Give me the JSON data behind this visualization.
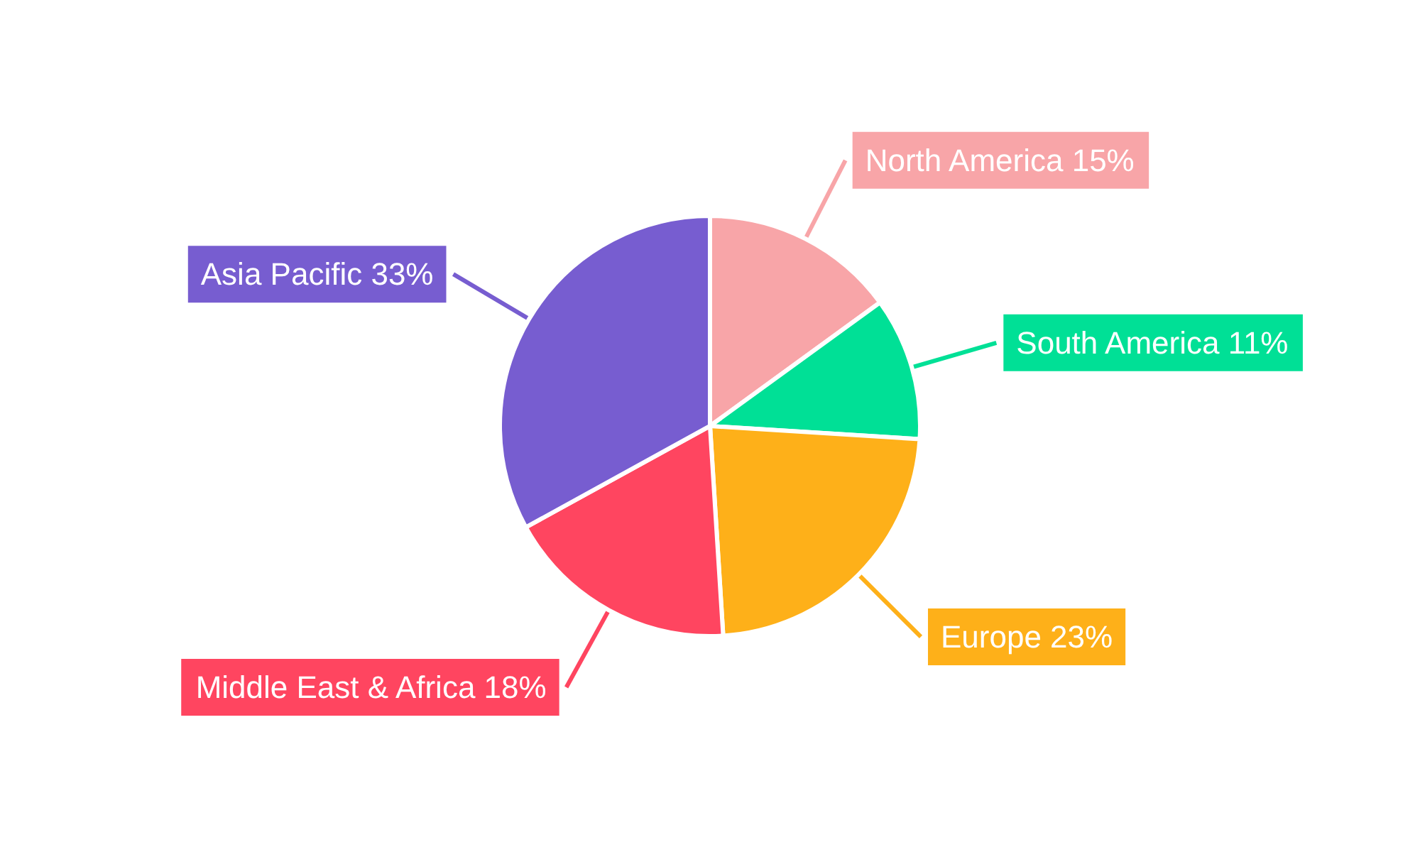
{
  "chart_data": {
    "type": "pie",
    "categories": [
      "North America",
      "South America",
      "Europe",
      "Middle East & Africa",
      "Asia Pacific"
    ],
    "values": [
      15,
      11,
      23,
      18,
      33
    ],
    "colors": [
      "#f8a5a8",
      "#00e096",
      "#feb019",
      "#ff4560",
      "#775dd0"
    ],
    "value_labels": [
      "15%",
      "11%",
      "23%",
      "18%",
      "33%"
    ],
    "legend": false
  }
}
